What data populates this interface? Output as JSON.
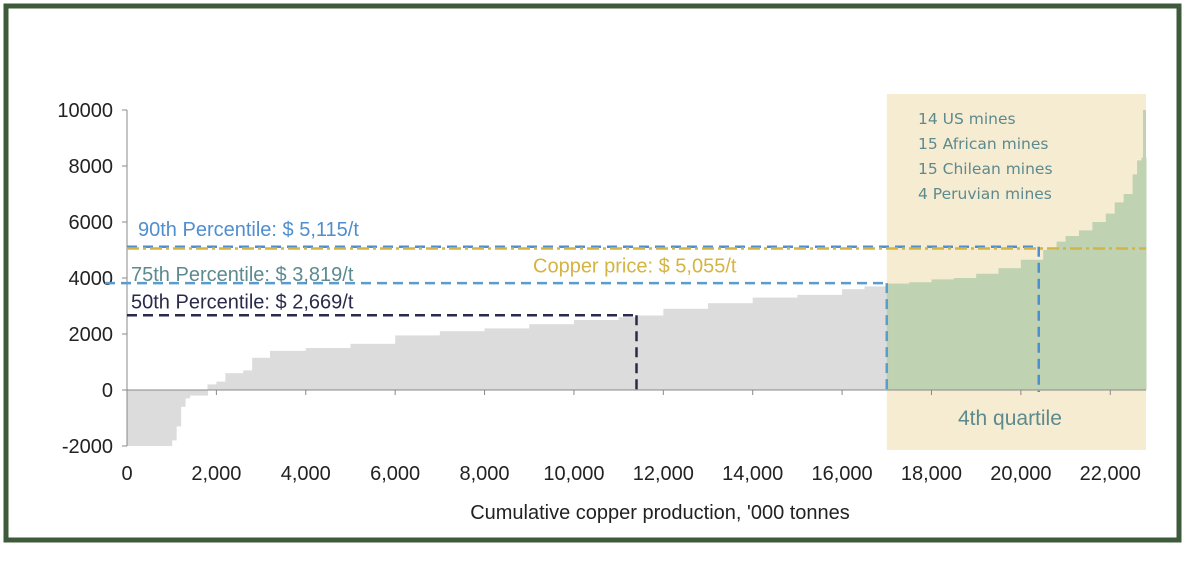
{
  "colors": {
    "border": "#3d5a3a",
    "cost_bars": "#dcdcdc",
    "fourth_quartile_bars": "#bfd3b3",
    "fourth_quartile_background": "#f6ecd2",
    "percentile_90": "#4f8ecf",
    "percentile_75": "#5a9ccd",
    "percentile_50": "#2a2a4a",
    "copper_price": "#d4b442",
    "quartile_text": "#5c8a8f",
    "mines_text": "#5c8a8f"
  },
  "chart_data": {
    "type": "area",
    "xlabel": "Cumulative copper production, '000 tonnes",
    "ylabel": "",
    "title": "",
    "xlim": [
      0,
      22800
    ],
    "ylim": [
      -2000,
      10000
    ],
    "x_ticks": [
      0,
      2000,
      4000,
      6000,
      8000,
      10000,
      12000,
      14000,
      16000,
      18000,
      20000,
      22000
    ],
    "x_tick_labels": [
      "0",
      "2,000",
      "4,000",
      "6,000",
      "8,000",
      "10,000",
      "12,000",
      "14,000",
      "16,000",
      "18,000",
      "20,000",
      "22,000"
    ],
    "y_ticks": [
      -2000,
      0,
      2000,
      4000,
      6000,
      8000,
      10000
    ],
    "y_tick_labels": [
      "-2000",
      "0",
      "2000",
      "4000",
      "6000",
      "8000",
      "10000"
    ],
    "grid": false,
    "cost_curve": {
      "x": [
        0,
        900,
        1000,
        1100,
        1200,
        1300,
        1400,
        1700,
        1800,
        2000,
        2200,
        2600,
        2800,
        3200,
        4000,
        5000,
        6000,
        7000,
        8000,
        9000,
        10000,
        11000,
        11400,
        12000,
        13000,
        14000,
        15000,
        16000,
        16500,
        17000,
        17500,
        18000,
        18500,
        19000,
        19500,
        20000,
        20500,
        20800,
        21000,
        21300,
        21600,
        21900,
        22100,
        22300,
        22500,
        22600,
        22700,
        22800
      ],
      "y": [
        -2000,
        -2000,
        -1800,
        -1300,
        -600,
        -300,
        -200,
        -200,
        200,
        300,
        600,
        700,
        1150,
        1400,
        1500,
        1650,
        1950,
        2100,
        2200,
        2350,
        2500,
        2600,
        2660,
        2900,
        3100,
        3300,
        3400,
        3600,
        3700,
        3800,
        3850,
        3950,
        4000,
        4150,
        4350,
        4650,
        5000,
        5300,
        5500,
        5700,
        6000,
        6300,
        6700,
        7000,
        7700,
        8200,
        8300,
        10000
      ]
    },
    "fourth_quartile_start_x": 17000,
    "shaded_region": {
      "x": [
        17000,
        22800
      ],
      "label": "4th quartile"
    },
    "reference_lines": [
      {
        "name": "90th Percentile",
        "label": "90th Percentile: $ 5,115/t",
        "y": 5115,
        "x_end": 20400
      },
      {
        "name": "75th Percentile",
        "label": "75th Percentile: $ 3,819/t",
        "y": 3819,
        "x_end": 17000
      },
      {
        "name": "50th Percentile",
        "label": "50th Percentile: $ 2,669/t",
        "y": 2669,
        "x_end": 11400
      },
      {
        "name": "Copper price",
        "label": "Copper price: $ 5,055/t",
        "y": 5055,
        "x_end": 22800
      }
    ],
    "annotations": [
      "14 US mines",
      "15 African mines",
      "15 Chilean mines",
      "4 Peruvian mines"
    ]
  }
}
